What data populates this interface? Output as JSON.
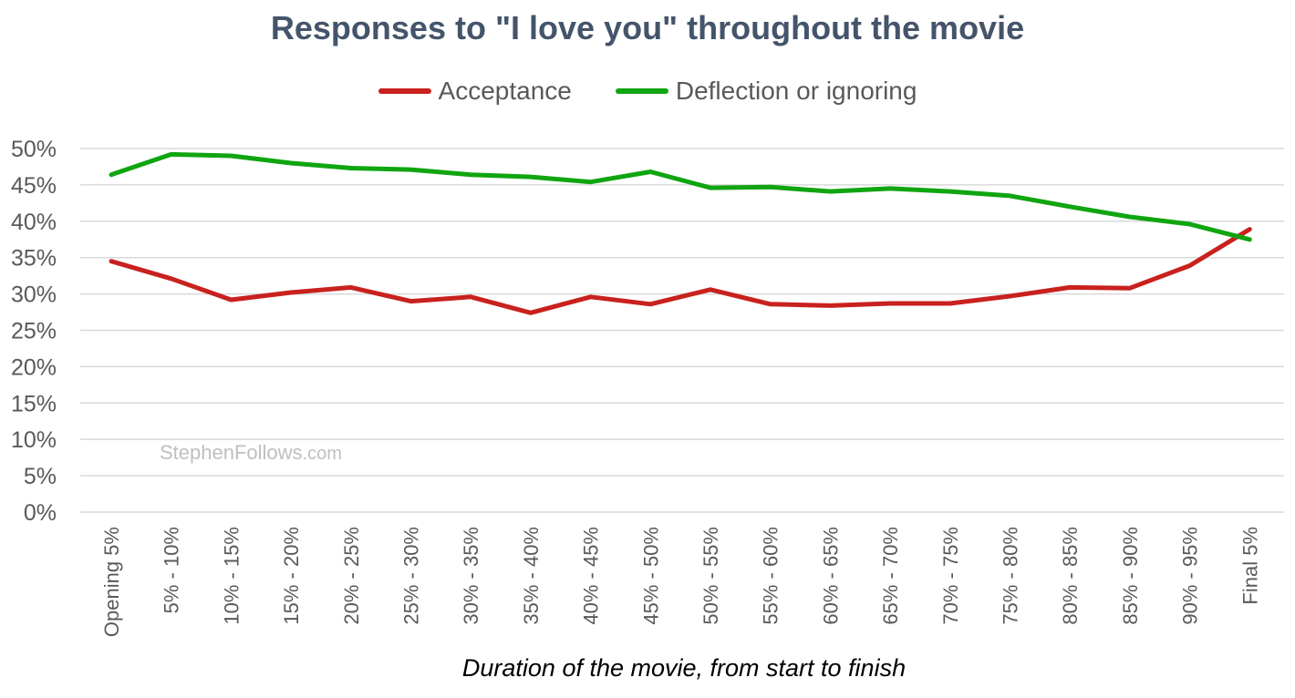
{
  "chart_data": {
    "type": "line",
    "title": "Responses to \"I love you\" throughout the movie",
    "xlabel": "Duration of the movie, from start to finish",
    "ylabel": "",
    "categories": [
      "Opening 5%",
      "5% - 10%",
      "10% - 15%",
      "15% - 20%",
      "20% - 25%",
      "25% - 30%",
      "30% - 35%",
      "35% - 40%",
      "40% - 45%",
      "45% - 50%",
      "50% - 55%",
      "55% - 60%",
      "60% - 65%",
      "65% - 70%",
      "70% - 75%",
      "75% - 80%",
      "80% - 85%",
      "85% - 90%",
      "90% - 95%",
      "Final 5%"
    ],
    "series": [
      {
        "name": "Acceptance",
        "color": "#c8211e",
        "values": [
          34.5,
          32.1,
          29.2,
          30.2,
          30.9,
          29.0,
          29.6,
          27.4,
          29.6,
          28.6,
          30.6,
          28.6,
          28.4,
          28.7,
          28.7,
          29.7,
          30.9,
          30.8,
          33.9,
          38.9
        ]
      },
      {
        "name": "Deflection or ignoring",
        "color": "#10a510",
        "values": [
          46.4,
          49.2,
          49.0,
          48.0,
          47.3,
          47.1,
          46.4,
          46.1,
          45.4,
          46.8,
          44.6,
          44.7,
          44.1,
          44.5,
          44.1,
          43.5,
          42.0,
          40.6,
          39.6,
          37.5
        ]
      }
    ],
    "ylim": [
      0,
      50
    ],
    "yticks": [
      0,
      5,
      10,
      15,
      20,
      25,
      30,
      35,
      40,
      45,
      50
    ],
    "ytick_format": "{v}%",
    "grid": true,
    "legend_position": "top-center",
    "gridline_color": "#d9d9d9",
    "tick_label_color": "#595959",
    "title_color": "#44546a"
  },
  "watermark": {
    "name": "StephenFollows",
    "domain": ".com"
  }
}
